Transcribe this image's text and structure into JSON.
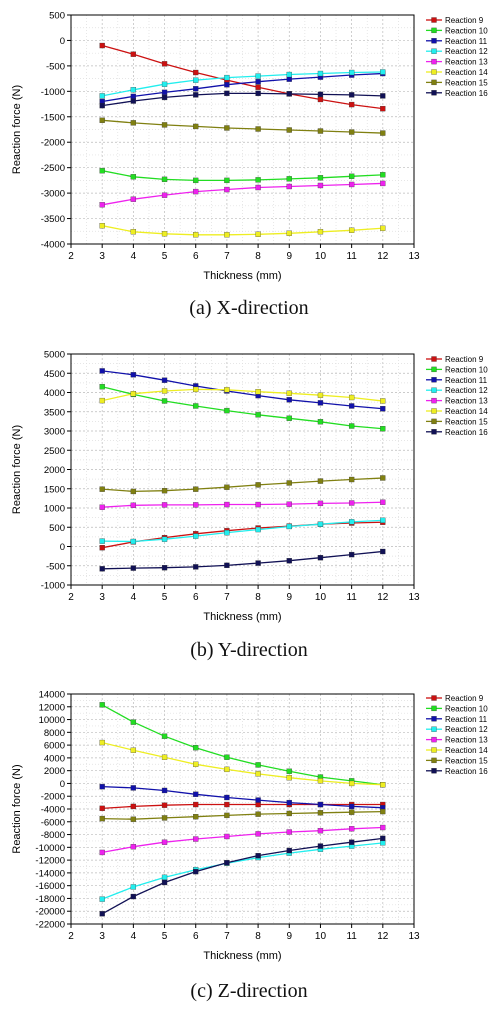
{
  "series_names": [
    "Reaction 9",
    "Reaction 10",
    "Reaction 11",
    "Reaction 12",
    "Reaction 13",
    "Reaction 14",
    "Reaction 15",
    "Reaction 16"
  ],
  "series_colors": [
    "#cc1111",
    "#22dd22",
    "#1111aa",
    "#22eeee",
    "#ee22ee",
    "#eeee22",
    "#808011",
    "#111155"
  ],
  "chart_data": [
    {
      "type": "line",
      "caption": "(a) X-direction",
      "xlabel": "Thickness (mm)",
      "ylabel": "Reaction force (N)",
      "xlim": [
        2,
        13
      ],
      "ylim": [
        -4000,
        500
      ],
      "xticks": [
        2,
        3,
        4,
        5,
        6,
        7,
        8,
        9,
        10,
        11,
        12,
        13
      ],
      "yticks": [
        -4000,
        -3500,
        -3000,
        -2500,
        -2000,
        -1500,
        -1000,
        -500,
        0,
        500
      ],
      "grid": true,
      "legend_position": "right",
      "x": [
        3,
        4,
        5,
        6,
        7,
        8,
        9,
        10,
        11,
        12
      ],
      "series": [
        {
          "name": "Reaction 9",
          "values": [
            -100,
            -270,
            -460,
            -630,
            -780,
            -920,
            -1050,
            -1160,
            -1260,
            -1340
          ]
        },
        {
          "name": "Reaction 10",
          "values": [
            -2560,
            -2680,
            -2730,
            -2750,
            -2750,
            -2740,
            -2720,
            -2700,
            -2670,
            -2640
          ]
        },
        {
          "name": "Reaction 11",
          "values": [
            -1200,
            -1100,
            -1020,
            -950,
            -870,
            -810,
            -760,
            -720,
            -680,
            -650
          ]
        },
        {
          "name": "Reaction 12",
          "values": [
            -1090,
            -970,
            -860,
            -780,
            -730,
            -700,
            -670,
            -650,
            -630,
            -620
          ]
        },
        {
          "name": "Reaction 13",
          "values": [
            -3230,
            -3120,
            -3040,
            -2970,
            -2930,
            -2890,
            -2870,
            -2850,
            -2830,
            -2810
          ]
        },
        {
          "name": "Reaction 14",
          "values": [
            -3640,
            -3760,
            -3800,
            -3820,
            -3820,
            -3810,
            -3790,
            -3760,
            -3730,
            -3690
          ]
        },
        {
          "name": "Reaction 15",
          "values": [
            -1570,
            -1620,
            -1660,
            -1690,
            -1720,
            -1740,
            -1760,
            -1780,
            -1800,
            -1820
          ]
        },
        {
          "name": "Reaction 16",
          "values": [
            -1280,
            -1190,
            -1120,
            -1070,
            -1040,
            -1040,
            -1050,
            -1060,
            -1070,
            -1090
          ]
        }
      ]
    },
    {
      "type": "line",
      "caption": "(b) Y-direction",
      "xlabel": "Thickness (mm)",
      "ylabel": "Reaction force (N)",
      "xlim": [
        2,
        13
      ],
      "ylim": [
        -1000,
        5000
      ],
      "xticks": [
        2,
        3,
        4,
        5,
        6,
        7,
        8,
        9,
        10,
        11,
        12,
        13
      ],
      "yticks": [
        -1000,
        -500,
        0,
        500,
        1000,
        1500,
        2000,
        2500,
        3000,
        3500,
        4000,
        4500,
        5000
      ],
      "grid": true,
      "legend_position": "right",
      "x": [
        3,
        4,
        5,
        6,
        7,
        8,
        9,
        10,
        11,
        12
      ],
      "series": [
        {
          "name": "Reaction 9",
          "values": [
            -30,
            120,
            230,
            330,
            410,
            480,
            530,
            580,
            610,
            630
          ]
        },
        {
          "name": "Reaction 10",
          "values": [
            4150,
            3950,
            3780,
            3650,
            3530,
            3420,
            3330,
            3240,
            3130,
            3060
          ]
        },
        {
          "name": "Reaction 11",
          "values": [
            4560,
            4460,
            4320,
            4170,
            4040,
            3920,
            3810,
            3730,
            3650,
            3580
          ]
        },
        {
          "name": "Reaction 12",
          "values": [
            140,
            130,
            190,
            270,
            360,
            440,
            520,
            580,
            640,
            680
          ]
        },
        {
          "name": "Reaction 13",
          "values": [
            1020,
            1070,
            1080,
            1080,
            1090,
            1090,
            1100,
            1120,
            1130,
            1150
          ]
        },
        {
          "name": "Reaction 14",
          "values": [
            3790,
            3970,
            4040,
            4080,
            4070,
            4020,
            3980,
            3930,
            3870,
            3780
          ]
        },
        {
          "name": "Reaction 15",
          "values": [
            1490,
            1430,
            1450,
            1490,
            1540,
            1600,
            1650,
            1700,
            1740,
            1780
          ]
        },
        {
          "name": "Reaction 16",
          "values": [
            -580,
            -560,
            -550,
            -530,
            -490,
            -430,
            -370,
            -290,
            -210,
            -130
          ]
        }
      ]
    },
    {
      "type": "line",
      "caption": "(c) Z-direction",
      "xlabel": "Thickness (mm)",
      "ylabel": "Reaction force (N)",
      "xlim": [
        2,
        13
      ],
      "ylim": [
        -22000,
        14000
      ],
      "xticks": [
        2,
        3,
        4,
        5,
        6,
        7,
        8,
        9,
        10,
        11,
        12,
        13
      ],
      "yticks": [
        -22000,
        -20000,
        -18000,
        -16000,
        -14000,
        -12000,
        -10000,
        -8000,
        -6000,
        -4000,
        -2000,
        0,
        2000,
        4000,
        6000,
        8000,
        10000,
        12000,
        14000
      ],
      "grid": true,
      "legend_position": "right",
      "x": [
        3,
        4,
        5,
        6,
        7,
        8,
        9,
        10,
        11,
        12
      ],
      "series": [
        {
          "name": "Reaction 9",
          "values": [
            -3900,
            -3600,
            -3400,
            -3300,
            -3300,
            -3300,
            -3300,
            -3300,
            -3300,
            -3300
          ]
        },
        {
          "name": "Reaction 10",
          "values": [
            12300,
            9600,
            7400,
            5600,
            4100,
            2900,
            1900,
            1000,
            400,
            -200
          ]
        },
        {
          "name": "Reaction 11",
          "values": [
            -500,
            -700,
            -1100,
            -1700,
            -2200,
            -2600,
            -3000,
            -3300,
            -3600,
            -3800
          ]
        },
        {
          "name": "Reaction 12",
          "values": [
            -18100,
            -16200,
            -14700,
            -13500,
            -12500,
            -11600,
            -10900,
            -10300,
            -9800,
            -9300
          ]
        },
        {
          "name": "Reaction 13",
          "values": [
            -10800,
            -9900,
            -9200,
            -8700,
            -8300,
            -7900,
            -7600,
            -7400,
            -7100,
            -6900
          ]
        },
        {
          "name": "Reaction 14",
          "values": [
            6400,
            5200,
            4100,
            3000,
            2200,
            1500,
            900,
            400,
            0,
            -200
          ]
        },
        {
          "name": "Reaction 15",
          "values": [
            -5500,
            -5600,
            -5400,
            -5200,
            -5000,
            -4800,
            -4700,
            -4600,
            -4500,
            -4400
          ]
        },
        {
          "name": "Reaction 16",
          "values": [
            -20400,
            -17700,
            -15500,
            -13800,
            -12400,
            -11300,
            -10500,
            -9800,
            -9200,
            -8600
          ]
        }
      ]
    }
  ]
}
